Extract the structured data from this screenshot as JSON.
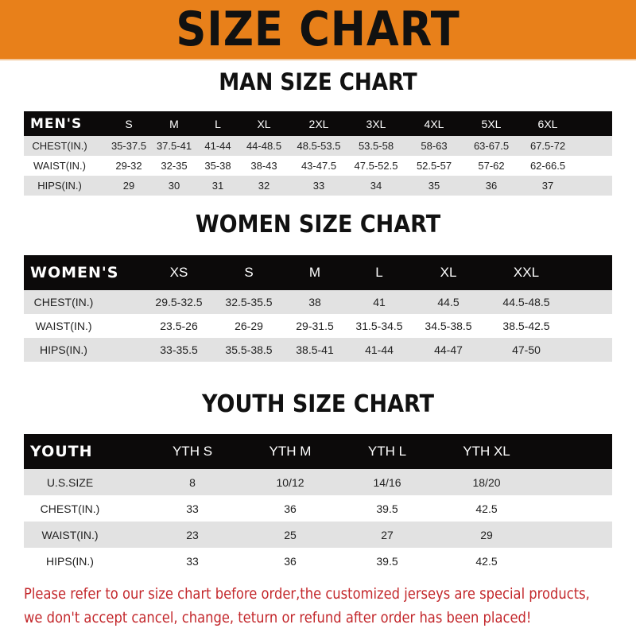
{
  "banner": {
    "title": "SIZE CHART",
    "color": "#E8801A"
  },
  "men": {
    "title": "MAN SIZE CHART",
    "header": [
      "MEN'S",
      "S",
      "M",
      "L",
      "XL",
      "2XL",
      "3XL",
      "4XL",
      "5XL",
      "6XL"
    ],
    "rows": [
      [
        "CHEST(IN.)",
        "35-37.5",
        "37.5-41",
        "41-44",
        "44-48.5",
        "48.5-53.5",
        "53.5-58",
        "58-63",
        "63-67.5",
        "67.5-72"
      ],
      [
        "WAIST(IN.)",
        "29-32",
        "32-35",
        "35-38",
        "38-43",
        "43-47.5",
        "47.5-52.5",
        "52.5-57",
        "57-62",
        "62-66.5"
      ],
      [
        "HIPS(IN.)",
        "29",
        "30",
        "31",
        "32",
        "33",
        "34",
        "35",
        "36",
        "37"
      ]
    ]
  },
  "women": {
    "title": "WOMEN SIZE CHART",
    "header": [
      "WOMEN'S",
      "XS",
      "S",
      "M",
      "L",
      "XL",
      "XXL"
    ],
    "rows": [
      [
        "CHEST(IN.)",
        "29.5-32.5",
        "32.5-35.5",
        "38",
        "41",
        "44.5",
        "44.5-48.5"
      ],
      [
        "WAIST(IN.)",
        "23.5-26",
        "26-29",
        "29-31.5",
        "31.5-34.5",
        "34.5-38.5",
        "38.5-42.5"
      ],
      [
        "HIPS(IN.)",
        "33-35.5",
        "35.5-38.5",
        "38.5-41",
        "41-44",
        "44-47",
        "47-50"
      ]
    ]
  },
  "youth": {
    "title": "YOUTH SIZE CHART",
    "header": [
      "YOUTH",
      "YTH S",
      "YTH M",
      "YTH L",
      "YTH XL"
    ],
    "rows": [
      [
        "U.S.SIZE",
        "8",
        "10/12",
        "14/16",
        "18/20"
      ],
      [
        "CHEST(IN.)",
        "33",
        "36",
        "39.5",
        "42.5"
      ],
      [
        "WAIST(IN.)",
        "23",
        "25",
        "27",
        "29"
      ],
      [
        "HIPS(IN.)",
        "33",
        "36",
        "39.5",
        "42.5"
      ]
    ]
  },
  "footer": {
    "line1": "Please refer to our size chart before order,the customized jerseys are special products,",
    "line2": "we don't accept cancel, change, teturn or refund after order has been placed!",
    "color": "#C3272B"
  }
}
